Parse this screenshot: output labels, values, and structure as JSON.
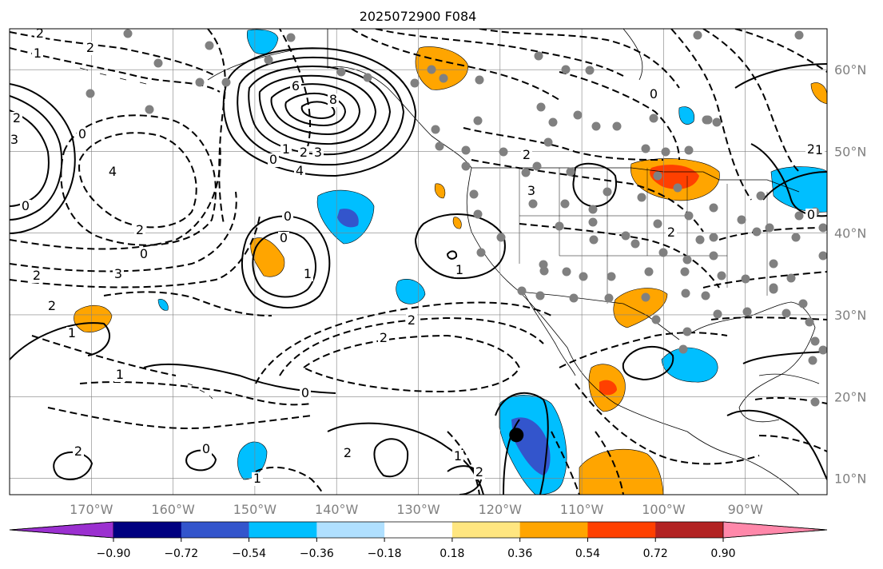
{
  "title": "2025072900 F084",
  "map": {
    "projection": "PlateCarree",
    "lon_range": [
      -180,
      -80
    ],
    "lat_range": [
      8,
      65
    ],
    "lat_labels": [
      "60°N",
      "50°N",
      "40°N",
      "30°N",
      "20°N",
      "10°N"
    ],
    "lat_values": [
      60,
      50,
      40,
      30,
      20,
      10
    ],
    "lon_labels": [
      "170°W",
      "160°W",
      "150°W",
      "140°W",
      "130°W",
      "120°W",
      "110°W",
      "100°W",
      "90°W"
    ],
    "lon_values": [
      -170,
      -160,
      -150,
      -140,
      -130,
      -120,
      -110,
      -100,
      -90
    ],
    "contour_labels": [
      "2",
      "1",
      "2",
      "0",
      "2",
      "3",
      "6",
      "8",
      "4",
      "3",
      "2",
      "1",
      "0",
      "4",
      "0",
      "2",
      "0",
      "3",
      "2",
      "2",
      "1",
      "0",
      "1",
      "0",
      "1",
      "2",
      "2",
      "1",
      "0",
      "2",
      "0",
      "1",
      "2",
      "2",
      "1",
      "0",
      "2",
      "3",
      "2",
      "2",
      "1",
      "0"
    ],
    "marker": {
      "lon": -118,
      "lat": 15.3
    }
  },
  "colorbar": {
    "ticks": [
      "−0.90",
      "−0.72",
      "−0.54",
      "−0.36",
      "−0.18",
      "0.18",
      "0.36",
      "0.54",
      "0.72",
      "0.90"
    ],
    "colors": [
      "#9b30d0",
      "#000080",
      "#3355cc",
      "#00bfff",
      "#b0e0ff",
      "#ffffff",
      "#ffe680",
      "#ffa500",
      "#ff4000",
      "#b22222",
      "#ff88aa"
    ]
  },
  "colors": {
    "positive_fill": "#ffa500",
    "positive_core": "#ff4000",
    "negative_fill": "#00bfff",
    "negative_core": "#3355cc",
    "station": "#808080"
  }
}
